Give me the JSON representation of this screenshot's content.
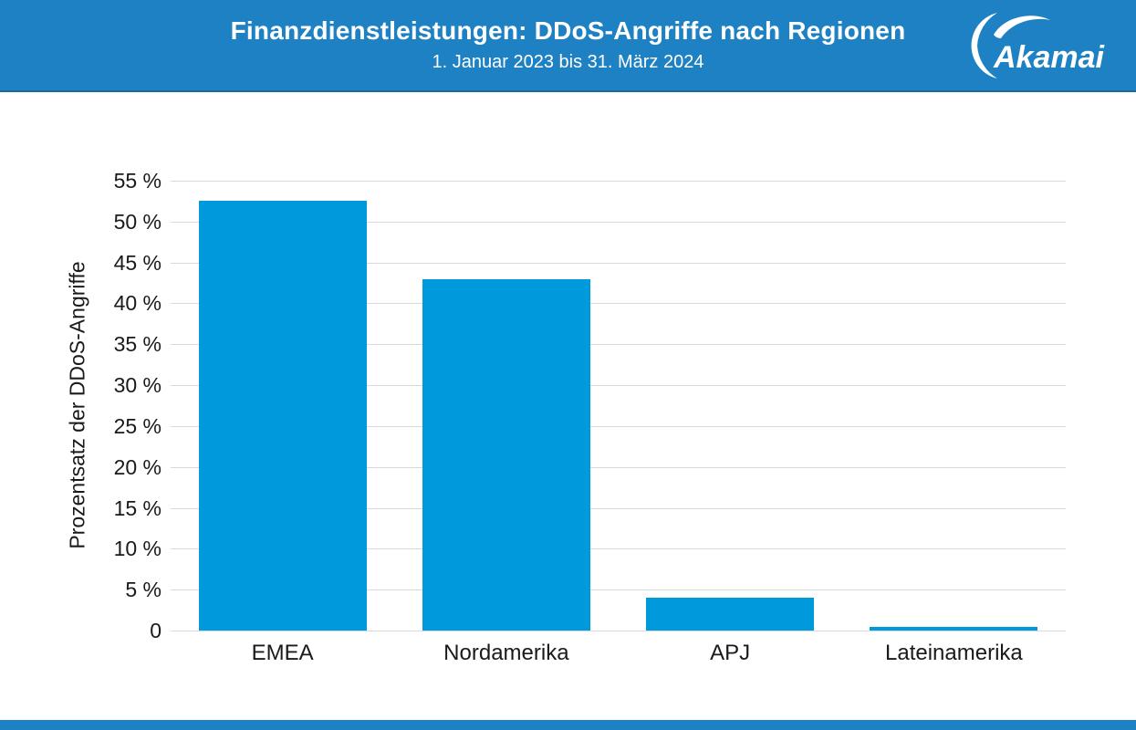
{
  "header": {
    "title": "Finanzdienstleistungen: DDoS-Angriffe nach Regionen",
    "subtitle": "1. Januar 2023 bis 31. März 2024",
    "logo_text": "Akamai",
    "background_color": "#1e81c3"
  },
  "chart_data": {
    "type": "bar",
    "title": "Finanzdienstleistungen: DDoS-Angriffe nach Regionen",
    "subtitle": "1. Januar 2023 bis 31. März 2024",
    "categories": [
      "EMEA",
      "Nordamerika",
      "APJ",
      "Lateinamerika"
    ],
    "values": [
      52.5,
      43,
      4,
      0.5
    ],
    "xlabel": "",
    "ylabel": "Prozentsatz der DDoS-Angriffe",
    "ylim": [
      0,
      55
    ],
    "y_tick_step": 5,
    "y_tick_labels": [
      "0",
      "5 %",
      "10 %",
      "15 %",
      "20 %",
      "25 %",
      "30 %",
      "35 %",
      "40 %",
      "45 %",
      "50 %",
      "55 %"
    ],
    "grid": true,
    "legend": "none",
    "bar_color": "#0099dc",
    "gridline_color": "#d9d9d9",
    "text_color": "#1a1a1a"
  },
  "footer": {
    "background_color": "#1e81c3"
  }
}
